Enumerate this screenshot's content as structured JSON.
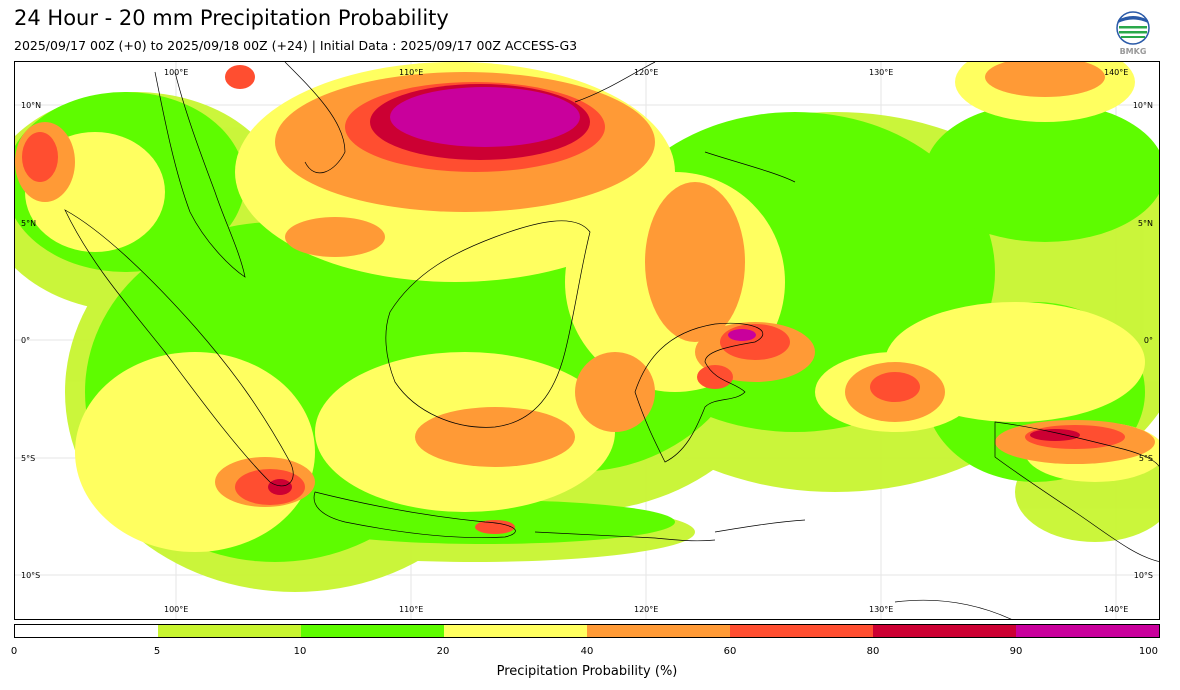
{
  "title": "24 Hour - 20 mm Precipitation Probability",
  "subtitle": "2025/09/17 00Z (+0) to 2025/09/18 00Z (+24) | Initial Data : 2025/09/17 00Z ACCESS-G3",
  "logo_text": "BMKG",
  "map": {
    "lon_labels": [
      "100°E",
      "110°E",
      "120°E",
      "130°E",
      "140°E"
    ],
    "lat_labels": [
      "10°N",
      "5°N",
      "0°",
      "5°S",
      "10°S"
    ]
  },
  "colorbar": {
    "label": "Precipitation Probability (%)",
    "ticks": [
      "0",
      "5",
      "10",
      "20",
      "40",
      "60",
      "80",
      "90",
      "100"
    ],
    "colors": [
      "#ffffff",
      "#c8f530",
      "#5efc00",
      "#ffff60",
      "#ff9a36",
      "#ff4e30",
      "#cc0033",
      "#c9009c"
    ]
  }
}
